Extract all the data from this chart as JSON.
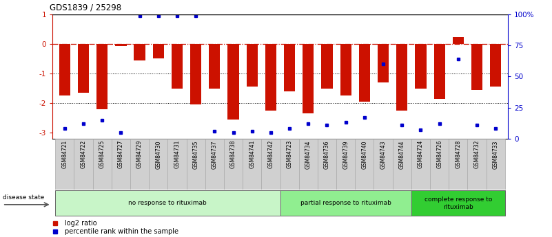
{
  "title": "GDS1839 / 25298",
  "samples": [
    "GSM84721",
    "GSM84722",
    "GSM84725",
    "GSM84727",
    "GSM84729",
    "GSM84730",
    "GSM84731",
    "GSM84735",
    "GSM84737",
    "GSM84738",
    "GSM84741",
    "GSM84742",
    "GSM84723",
    "GSM84734",
    "GSM84736",
    "GSM84739",
    "GSM84740",
    "GSM84743",
    "GSM84744",
    "GSM84724",
    "GSM84726",
    "GSM84728",
    "GSM84732",
    "GSM84733"
  ],
  "log2_ratio": [
    -1.75,
    -1.65,
    -2.2,
    -0.08,
    -0.55,
    -0.5,
    -1.5,
    -2.05,
    -1.5,
    -2.55,
    -1.45,
    -2.25,
    -1.6,
    -2.35,
    -1.5,
    -1.75,
    -1.95,
    -1.3,
    -2.25,
    -1.5,
    -1.85,
    0.22,
    -1.55,
    -1.45
  ],
  "percentile_rank": [
    8,
    12,
    15,
    5,
    99,
    99,
    99,
    99,
    6,
    5,
    6,
    5,
    8,
    12,
    11,
    13,
    17,
    60,
    11,
    7,
    12,
    64,
    11,
    8
  ],
  "groups": [
    {
      "label": "no response to rituximab",
      "start": 0,
      "end": 11,
      "color": "#c8f5c8"
    },
    {
      "label": "partial response to rituximab",
      "start": 12,
      "end": 18,
      "color": "#90ee90"
    },
    {
      "label": "complete response to\nrituximab",
      "start": 19,
      "end": 23,
      "color": "#32cd32"
    }
  ],
  "bar_color": "#cc1100",
  "dot_color": "#0000cc",
  "ylim_left": [
    -3.2,
    1.0
  ],
  "ylim_right": [
    0,
    100
  ],
  "background_color": "#ffffff",
  "label_box_color": "#d0d0d0",
  "label_box_edge": "#aaaaaa"
}
